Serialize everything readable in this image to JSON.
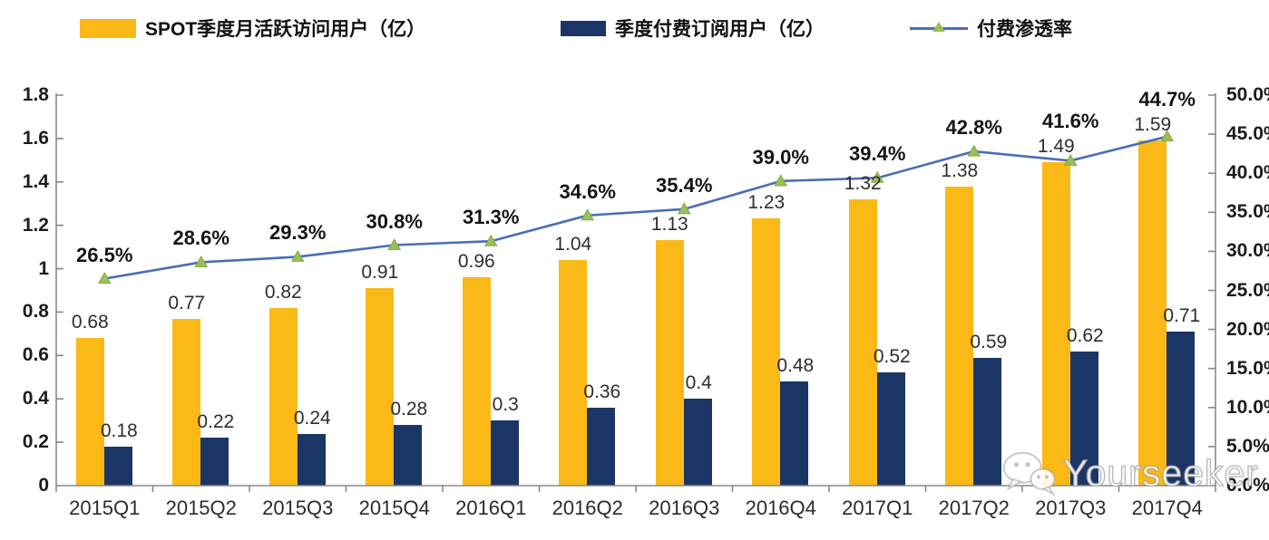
{
  "legend": {
    "items": [
      {
        "label": "SPOT季度月活跃访问用户（亿）",
        "swatch_color": "#FBB917"
      },
      {
        "label": "季度付费订阅用户（亿）",
        "swatch_color": "#1B3566"
      },
      {
        "label": "付费渗透率",
        "line_color": "#4A6DB5",
        "marker_color": "#9BBF57"
      }
    ]
  },
  "watermark": {
    "text": "Yourseeker",
    "icon": "wechat-icon"
  },
  "chart_data": {
    "type": "bar+line",
    "categories": [
      "2015Q1",
      "2015Q2",
      "2015Q3",
      "2015Q4",
      "2016Q1",
      "2016Q2",
      "2016Q3",
      "2016Q4",
      "2017Q1",
      "2017Q2",
      "2017Q3",
      "2017Q4"
    ],
    "series": [
      {
        "name": "SPOT季度月活跃访问用户（亿）",
        "type": "bar",
        "axis": "left",
        "color": "#FBB917",
        "values": [
          0.68,
          0.77,
          0.82,
          0.91,
          0.96,
          1.04,
          1.13,
          1.23,
          1.32,
          1.38,
          1.49,
          1.59
        ],
        "labels": [
          "0.68",
          "0.77",
          "0.82",
          "0.91",
          "0.96",
          "1.04",
          "1.13",
          "1.23",
          "1.32",
          "1.38",
          "1.49",
          "1.59"
        ]
      },
      {
        "name": "季度付费订阅用户（亿）",
        "type": "bar",
        "axis": "left",
        "color": "#1B3566",
        "values": [
          0.18,
          0.22,
          0.24,
          0.28,
          0.3,
          0.36,
          0.4,
          0.48,
          0.52,
          0.59,
          0.62,
          0.71
        ],
        "labels": [
          "0.18",
          "0.22",
          "0.24",
          "0.28",
          "0.3",
          "0.36",
          "0.4",
          "0.48",
          "0.52",
          "0.59",
          "0.62",
          "0.71"
        ]
      },
      {
        "name": "付费渗透率",
        "type": "line",
        "axis": "right",
        "color": "#4A6DB5",
        "marker": "triangle",
        "marker_color": "#9BBF57",
        "values": [
          26.5,
          28.6,
          29.3,
          30.8,
          31.3,
          34.6,
          35.4,
          39.0,
          39.4,
          42.8,
          41.6,
          44.7
        ],
        "labels": [
          "26.5%",
          "28.6%",
          "29.3%",
          "30.8%",
          "31.3%",
          "34.6%",
          "35.4%",
          "39.0%",
          "39.4%",
          "42.8%",
          "41.6%",
          "44.7%"
        ]
      }
    ],
    "left_axis": {
      "min": 0,
      "max": 1.8,
      "step": 0.2,
      "ticks": [
        "1.8",
        "1.6",
        "1.4",
        "1.2",
        "1",
        "0.8",
        "0.6",
        "0.4",
        "0.2",
        "0"
      ]
    },
    "right_axis": {
      "min": 0,
      "max": 50,
      "step": 5,
      "ticks": [
        "50.0%",
        "45.0%",
        "40.0%",
        "35.0%",
        "30.0%",
        "25.0%",
        "20.0%",
        "15.0%",
        "10.0%",
        "5.0%",
        "0.0%"
      ]
    },
    "grid": false,
    "legend_position": "top",
    "background": "#FFFFFF"
  }
}
